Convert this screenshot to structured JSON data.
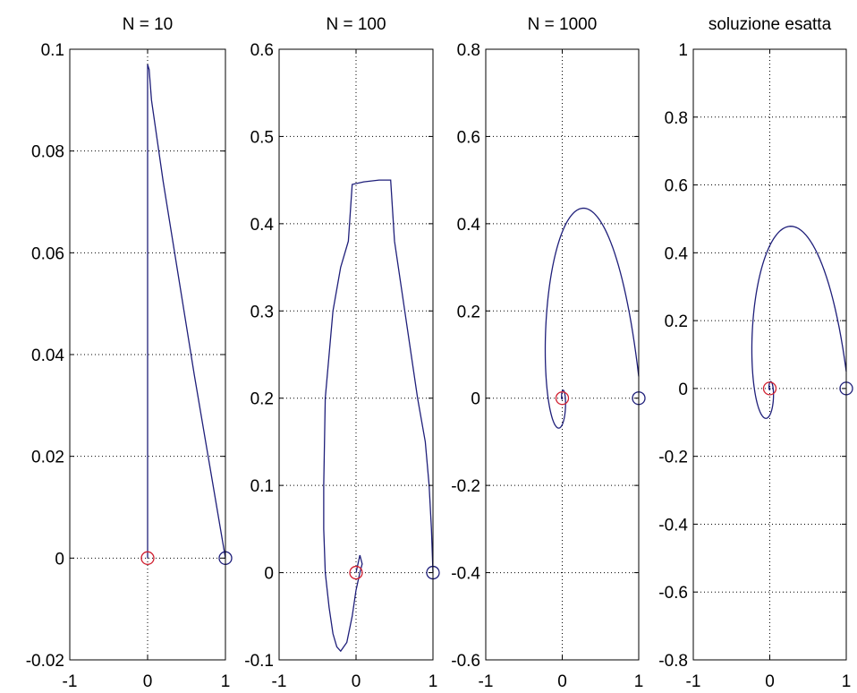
{
  "colors": {
    "trajectory": "#1f1f7a",
    "end_marker": "#d02030",
    "start_marker": "#1f1f7a",
    "grid": "#000000",
    "axes_box": "#000000"
  },
  "icons": {
    "start_marker": "circle-open-marker",
    "end_marker": "circle-open-marker"
  },
  "chart_data": [
    {
      "type": "line",
      "title": "N = 10",
      "xlim": [
        -1,
        1
      ],
      "ylim": [
        -0.02,
        0.1
      ],
      "x_ticks": [
        -1,
        0,
        1
      ],
      "y_ticks": [
        -0.02,
        0,
        0.02,
        0.04,
        0.06,
        0.08,
        0.1
      ],
      "x_tick_labels": [
        "-1",
        "0",
        "1"
      ],
      "y_tick_labels": [
        "-0.02",
        "0",
        "0.02",
        "0.04",
        "0.06",
        "0.08",
        "0.1"
      ],
      "grid": "dotted",
      "series": [
        {
          "kind": "trajectory",
          "x": [
            1,
            0.8,
            0.6,
            0.4,
            0.2,
            0.05,
            0.02,
            0,
            0,
            0,
            0
          ],
          "y": [
            0.0,
            0.018,
            0.036,
            0.055,
            0.074,
            0.09,
            0.096,
            0.097,
            0.08,
            0.05,
            0.0
          ]
        }
      ],
      "markers": [
        {
          "role": "start",
          "x": 1,
          "y": 0
        },
        {
          "role": "end",
          "x": 0,
          "y": 0
        }
      ]
    },
    {
      "type": "line",
      "title": "N = 100",
      "xlim": [
        -1,
        1
      ],
      "ylim": [
        -0.1,
        0.6
      ],
      "x_ticks": [
        -1,
        0,
        1
      ],
      "y_ticks": [
        -0.1,
        0,
        0.1,
        0.2,
        0.3,
        0.4,
        0.5,
        0.6
      ],
      "x_tick_labels": [
        "-1",
        "0",
        "1"
      ],
      "y_tick_labels": [
        "-0.1",
        "0",
        "0.1",
        "0.2",
        "0.3",
        "0.4",
        "0.5",
        "0.6"
      ],
      "grid": "dotted",
      "series": [
        {
          "kind": "trajectory",
          "x": [
            1.0,
            0.98,
            0.95,
            0.9,
            0.8,
            0.7,
            0.6,
            0.5,
            0.45,
            0.3,
            0.1,
            -0.05,
            -0.1,
            -0.2,
            -0.3,
            -0.35,
            -0.4,
            -0.42,
            -0.42,
            -0.4,
            -0.35,
            -0.3,
            -0.25,
            -0.2,
            -0.12,
            -0.05,
            0.0,
            0.05,
            0.08,
            0.05,
            0.0
          ],
          "y": [
            0.0,
            0.05,
            0.1,
            0.15,
            0.2,
            0.26,
            0.32,
            0.38,
            0.45,
            0.45,
            0.448,
            0.445,
            0.38,
            0.35,
            0.3,
            0.25,
            0.2,
            0.1,
            0.05,
            0.0,
            -0.04,
            -0.07,
            -0.085,
            -0.09,
            -0.08,
            -0.05,
            -0.02,
            0.0,
            0.01,
            0.02,
            0.0
          ]
        }
      ],
      "markers": [
        {
          "role": "start",
          "x": 1,
          "y": 0
        },
        {
          "role": "end",
          "x": 0,
          "y": 0
        }
      ]
    },
    {
      "type": "line",
      "title": "N = 1000",
      "xlim": [
        -1,
        1
      ],
      "ylim": [
        -0.6,
        0.8
      ],
      "x_ticks": [
        -1,
        0,
        1
      ],
      "y_ticks": [
        -0.6,
        -0.4,
        -0.2,
        0,
        0.2,
        0.4,
        0.6,
        0.8
      ],
      "x_tick_labels": [
        "-1",
        "0",
        "1"
      ],
      "y_tick_labels": [
        "-0.6",
        "-0.4",
        "-0.2",
        "0",
        "0.2",
        "0.4",
        "0.6",
        "0.8"
      ],
      "grid": "dotted",
      "spiral": {
        "x0": 1,
        "y0": 0.05,
        "x_decay": 0.52,
        "y_scale": 1.6,
        "y_decay": 0.38,
        "turns": 5
      },
      "markers": [
        {
          "role": "start",
          "x": 1,
          "y": 0
        },
        {
          "role": "end",
          "x": 0,
          "y": 0
        }
      ]
    },
    {
      "type": "line",
      "title": "soluzione esatta",
      "xlim": [
        -1,
        1
      ],
      "ylim": [
        -0.8,
        1
      ],
      "x_ticks": [
        -1,
        0,
        1
      ],
      "y_ticks": [
        -0.8,
        -0.6,
        -0.4,
        -0.2,
        0,
        0.2,
        0.4,
        0.6,
        0.8,
        1
      ],
      "x_tick_labels": [
        "-1",
        "0",
        "1"
      ],
      "y_tick_labels": [
        "-0.8",
        "-0.6",
        "-0.4",
        "-0.2",
        "0",
        "0.2",
        "0.4",
        "0.6",
        "0.8",
        "1"
      ],
      "grid": "dotted",
      "spiral": {
        "x0": 1,
        "y0": 0.05,
        "x_decay": 0.5,
        "y_scale": 1.75,
        "y_decay": 0.52,
        "turns": 6
      },
      "markers": [
        {
          "role": "start",
          "x": 1,
          "y": 0
        },
        {
          "role": "end",
          "x": 0,
          "y": 0
        }
      ]
    }
  ]
}
